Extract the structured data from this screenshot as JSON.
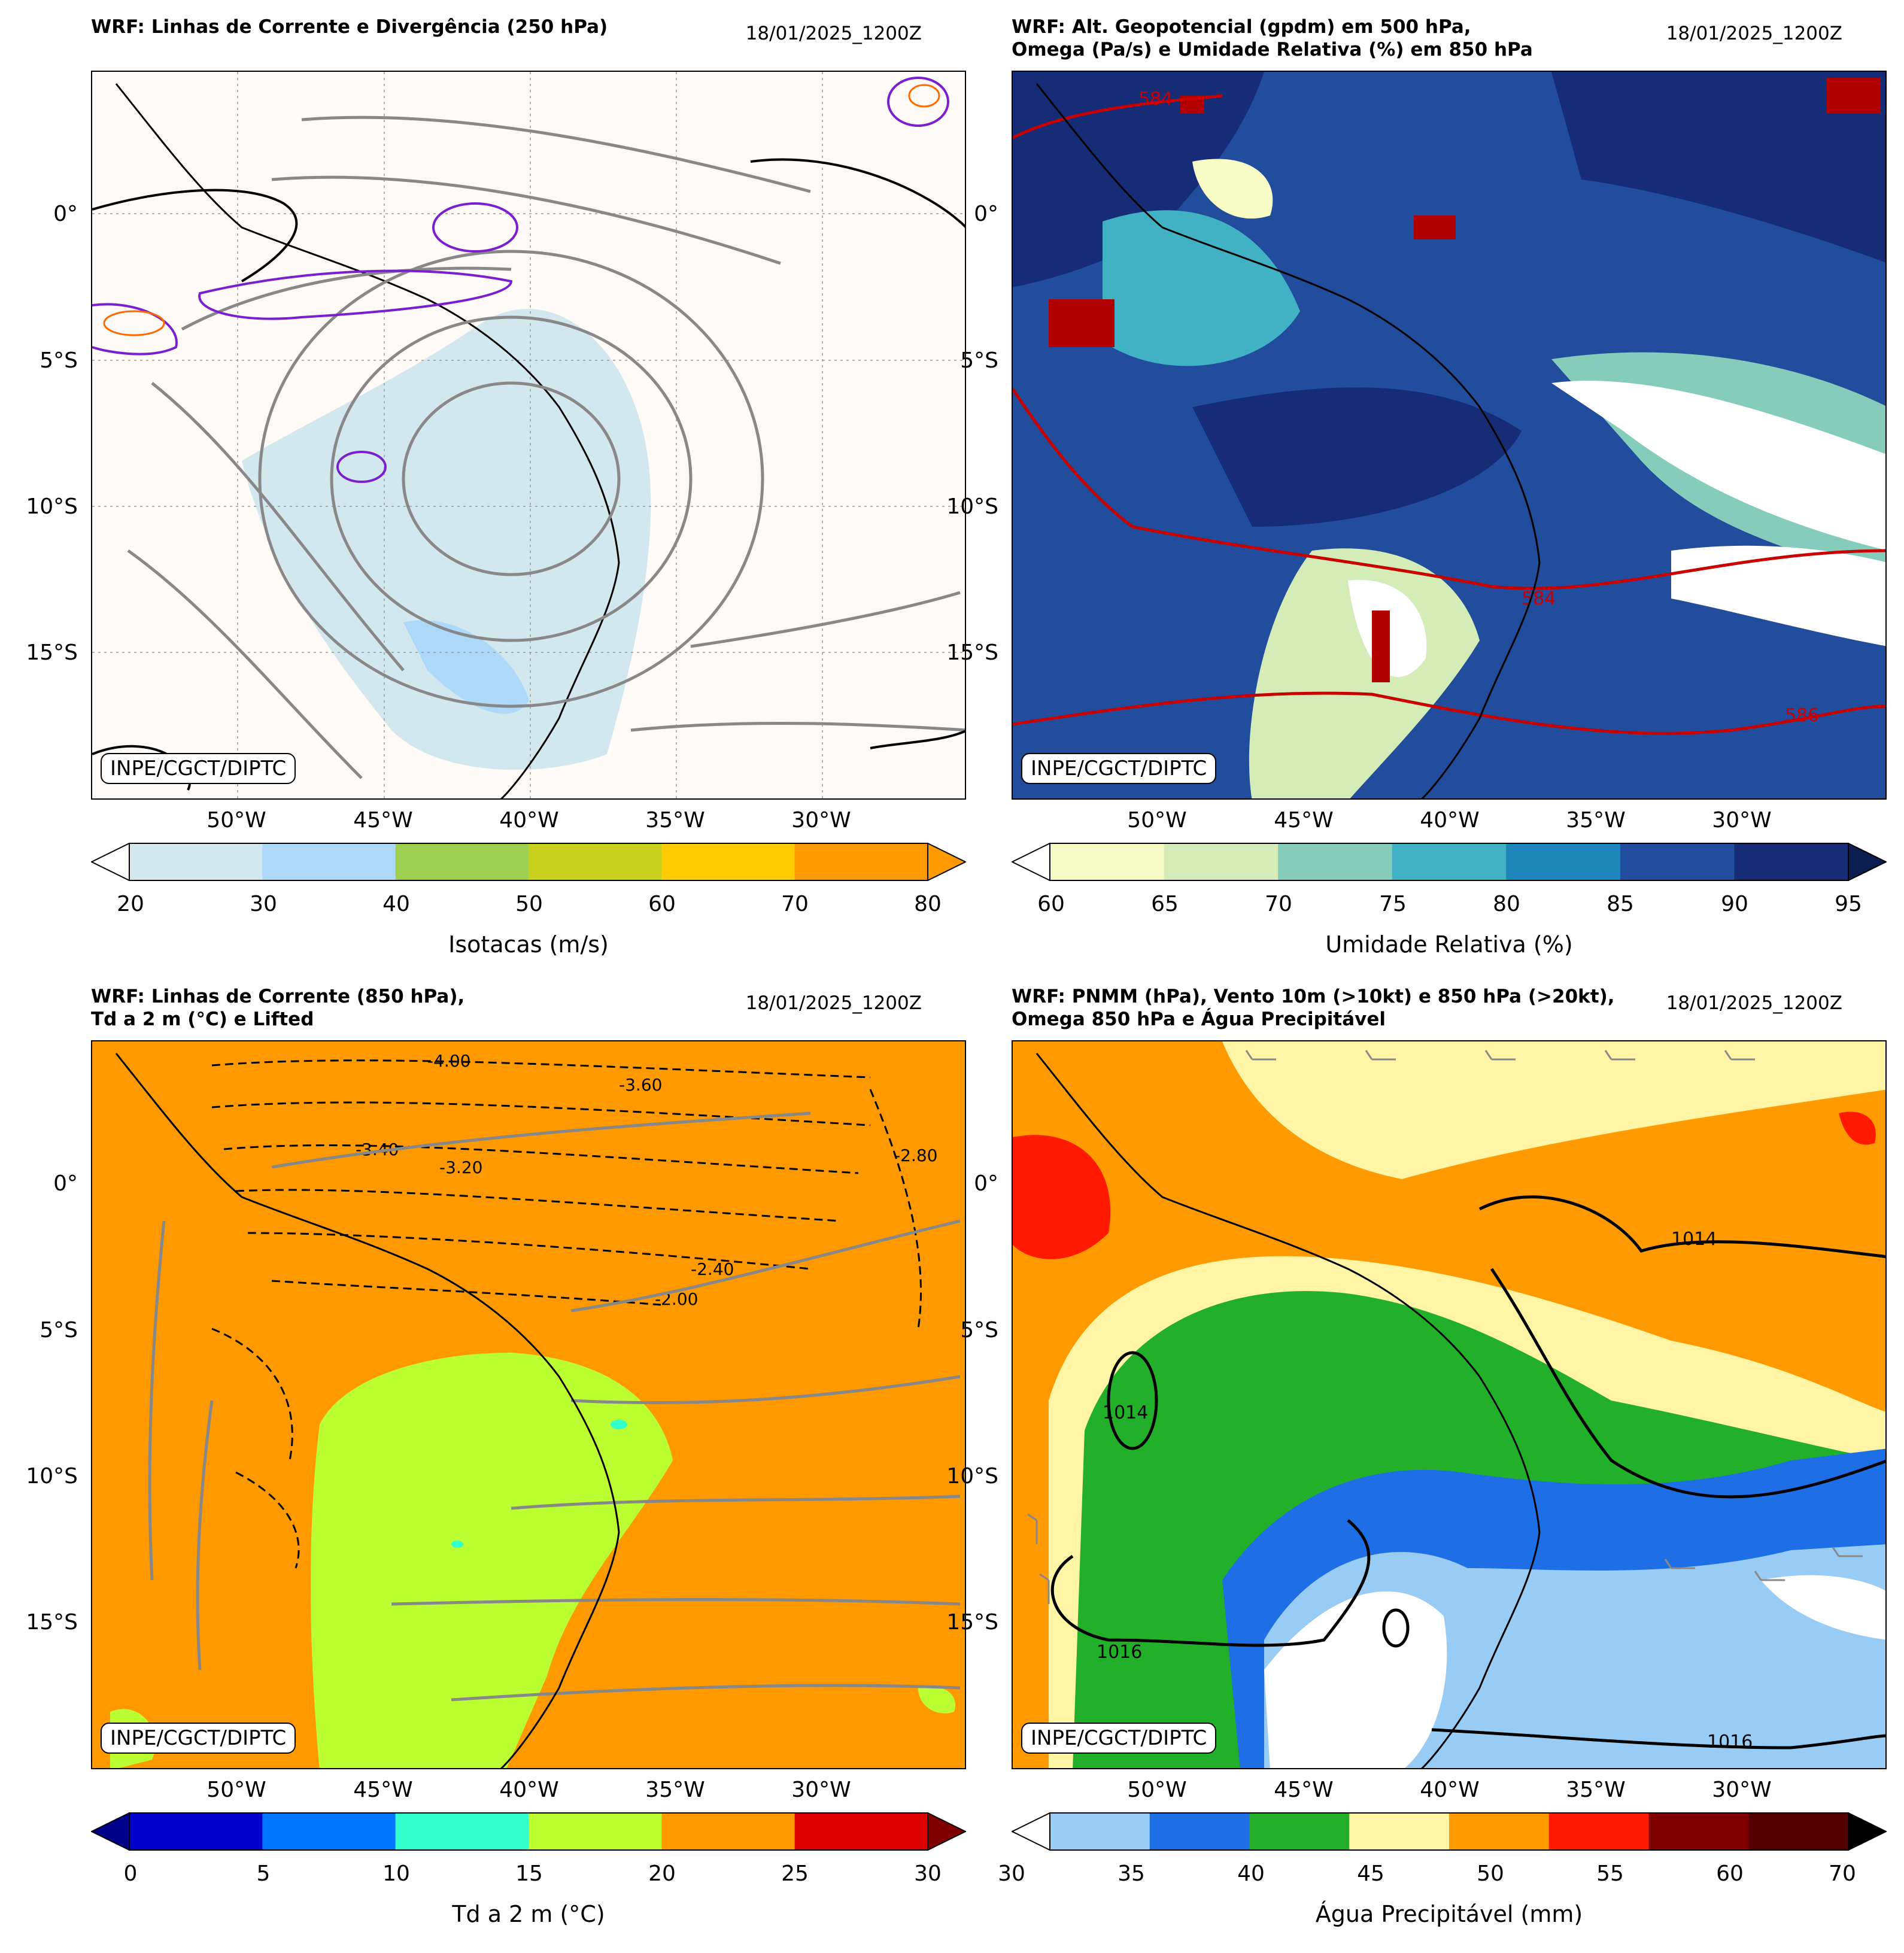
{
  "panels": [
    {
      "id": "p1",
      "title": "WRF: Linhas de Corrente e Divergência (250 hPa)",
      "date": "18/01/2025_1200Z",
      "credit": "INPE/CGCT/DIPTC",
      "lat_labels": [
        "0°",
        "5°S",
        "10°S",
        "15°S"
      ],
      "lon_labels": [
        "50°W",
        "45°W",
        "40°W",
        "35°W",
        "30°W"
      ],
      "colorbar": {
        "label": "Isotacas (m/s)",
        "ticks": [
          "20",
          "30",
          "40",
          "50",
          "60",
          "70",
          "80"
        ],
        "colors": [
          "#d2e8ee",
          "#aed8f8",
          "#9dcf50",
          "#c8d21e",
          "#ffcc00",
          "#ff9900"
        ],
        "ext_low": "#ffffff",
        "ext_high": "#ff9900"
      },
      "contour_labels": []
    },
    {
      "id": "p2",
      "title": "WRF: Alt. Geopotencial (gpdm) em 500 hPa,\nOmega (Pa/s) e Umidade Relativa (%) em 850 hPa",
      "date": "18/01/2025_1200Z",
      "credit": "INPE/CGCT/DIPTC",
      "lat_labels": [
        "0°",
        "5°S",
        "10°S",
        "15°S"
      ],
      "lon_labels": [
        "50°W",
        "45°W",
        "40°W",
        "35°W",
        "30°W"
      ],
      "colorbar": {
        "label": "Umidade Relativa (%)",
        "ticks": [
          "60",
          "65",
          "70",
          "75",
          "80",
          "85",
          "90",
          "95"
        ],
        "colors": [
          "#f7fcc6",
          "#d4edb8",
          "#86ccbb",
          "#40b2c4",
          "#1f86bb",
          "#224c9c",
          "#162c77"
        ],
        "ext_low": "#ffffff",
        "ext_high": "#0c1e50"
      },
      "contour_labels": [
        "584",
        "584",
        "586"
      ]
    },
    {
      "id": "p3",
      "title": "WRF: Linhas de Corrente (850 hPa),\nTd a 2 m (°C) e Lifted",
      "date": "18/01/2025_1200Z",
      "credit": "INPE/CGCT/DIPTC",
      "lat_labels": [
        "0°",
        "5°S",
        "10°S",
        "15°S"
      ],
      "lon_labels": [
        "50°W",
        "45°W",
        "40°W",
        "35°W",
        "30°W"
      ],
      "colorbar": {
        "label": "Td a 2 m (°C)",
        "ticks": [
          "0",
          "5",
          "10",
          "15",
          "20",
          "25",
          "30"
        ],
        "colors": [
          "#0000cc",
          "#0077ff",
          "#33ffcc",
          "#bbff33",
          "#ff9900",
          "#dd0000"
        ],
        "ext_low": "#00008b",
        "ext_high": "#800000"
      },
      "contour_labels": [
        "-3.60",
        "-4.00",
        "-3.40",
        "-3.20",
        "-2.40",
        "-2.00",
        "-2.80"
      ]
    },
    {
      "id": "p4",
      "title": "WRF: PNMM (hPa), Vento 10m (>10kt) e 850 hPa (>20kt),\nOmega 850 hPa e Água Precipitável",
      "date": "18/01/2025_1200Z",
      "credit": "INPE/CGCT/DIPTC",
      "lat_labels": [
        "0°",
        "5°S",
        "10°S",
        "15°S"
      ],
      "lon_labels": [
        "50°W",
        "45°W",
        "40°W",
        "35°W",
        "30°W"
      ],
      "colorbar": {
        "label": "Água Precipitável (mm)",
        "ticks": [
          "30",
          "35",
          "40",
          "45",
          "50",
          "55",
          "60",
          "70"
        ],
        "colors": [
          "#99ccf5",
          "#1e6ee6",
          "#22b02a",
          "#fff5a5",
          "#ff9a00",
          "#ff1a00",
          "#800000",
          "#520000"
        ],
        "ext_low": "#ffffff",
        "ext_high": "#000000"
      },
      "contour_labels": [
        "1014",
        "1014",
        "1016",
        "1016"
      ]
    }
  ]
}
